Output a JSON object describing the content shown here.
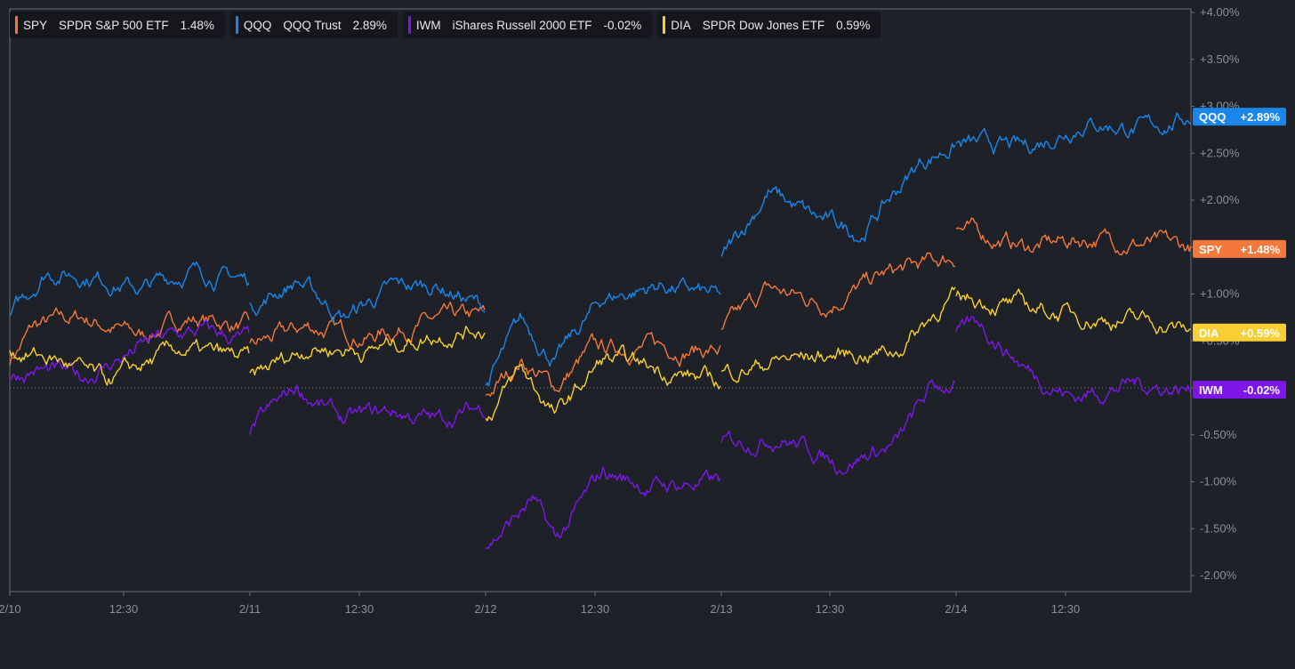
{
  "legend": [
    {
      "ticker": "SPY",
      "name": "SPDR S&P 500 ETF",
      "change": "1.48%",
      "color": "#f4773b"
    },
    {
      "ticker": "QQQ",
      "name": "QQQ Trust",
      "change": "2.89%",
      "color": "#1a86ea"
    },
    {
      "ticker": "IWM",
      "name": "iShares Russell 2000 ETF",
      "change": "-0.02%",
      "color": "#7c17e8"
    },
    {
      "ticker": "DIA",
      "name": "SPDR Dow Jones ETF",
      "change": "0.59%",
      "color": "#f7cf34"
    }
  ],
  "chart_data": {
    "type": "line",
    "y_unit": "percent change",
    "ylim": [
      -2.0,
      4.0
    ],
    "y_ticks": [
      "+4.00%",
      "+3.50%",
      "+3.00%",
      "+2.50%",
      "+2.00%",
      "+1.50%",
      "+1.00%",
      "+0.50%",
      "0.00%",
      "-0.50%",
      "-1.00%",
      "-1.50%",
      "-2.00%"
    ],
    "x_tick_labels": [
      "2/10",
      "12:30",
      "2/11",
      "12:30",
      "2/12",
      "12:30",
      "2/13",
      "12:30",
      "2/14",
      "12:30"
    ],
    "zero_line": "dotted",
    "series": [
      {
        "name": "SPY",
        "color": "#f4773b",
        "end_label": "+1.48%",
        "days": [
          [
            [
              0,
              0.3
            ],
            [
              0.1,
              0.65
            ],
            [
              0.3,
              0.75
            ],
            [
              0.55,
              0.55
            ],
            [
              0.75,
              0.75
            ],
            [
              1.0,
              0.65
            ]
          ],
          [
            [
              0,
              0.45
            ],
            [
              0.25,
              0.65
            ],
            [
              0.5,
              0.55
            ],
            [
              0.75,
              0.7
            ],
            [
              1.0,
              0.75
            ]
          ],
          [
            [
              0,
              -0.1
            ],
            [
              0.15,
              0.3
            ],
            [
              0.3,
              0.0
            ],
            [
              0.45,
              0.4
            ],
            [
              0.7,
              0.45
            ],
            [
              1.0,
              0.4
            ]
          ],
          [
            [
              0,
              0.6
            ],
            [
              0.2,
              1.05
            ],
            [
              0.45,
              0.9
            ],
            [
              0.7,
              1.2
            ],
            [
              1.0,
              1.4
            ]
          ],
          [
            [
              0,
              1.7
            ],
            [
              0.3,
              1.5
            ],
            [
              0.6,
              1.6
            ],
            [
              1.0,
              1.48
            ]
          ]
        ]
      },
      {
        "name": "QQQ",
        "color": "#1a86ea",
        "end_label": "+2.89%",
        "days": [
          [
            [
              0,
              0.75
            ],
            [
              0.15,
              1.25
            ],
            [
              0.35,
              1.2
            ],
            [
              0.55,
              1.05
            ],
            [
              0.75,
              1.25
            ],
            [
              1.0,
              1.15
            ]
          ],
          [
            [
              0,
              0.85
            ],
            [
              0.2,
              1.15
            ],
            [
              0.4,
              0.75
            ],
            [
              0.6,
              1.05
            ],
            [
              0.8,
              1.1
            ],
            [
              1.0,
              0.85
            ]
          ],
          [
            [
              0,
              0.0
            ],
            [
              0.15,
              0.7
            ],
            [
              0.3,
              0.3
            ],
            [
              0.5,
              0.95
            ],
            [
              0.75,
              1.1
            ],
            [
              1.0,
              0.95
            ]
          ],
          [
            [
              0,
              1.35
            ],
            [
              0.2,
              2.1
            ],
            [
              0.4,
              1.8
            ],
            [
              0.6,
              1.65
            ],
            [
              0.85,
              2.4
            ],
            [
              1.0,
              2.6
            ]
          ],
          [
            [
              0,
              2.6
            ],
            [
              0.3,
              2.55
            ],
            [
              0.55,
              2.85
            ],
            [
              0.8,
              2.75
            ],
            [
              1.0,
              2.89
            ]
          ]
        ]
      },
      {
        "name": "IWM",
        "color": "#7c17e8",
        "end_label": "-0.02%",
        "days": [
          [
            [
              0,
              0.1
            ],
            [
              0.1,
              0.2
            ],
            [
              0.3,
              0.1
            ],
            [
              0.6,
              0.5
            ],
            [
              0.8,
              0.6
            ],
            [
              1.0,
              0.5
            ]
          ],
          [
            [
              0,
              -0.45
            ],
            [
              0.2,
              0.0
            ],
            [
              0.4,
              -0.35
            ],
            [
              0.6,
              -0.25
            ],
            [
              0.8,
              -0.35
            ],
            [
              1.0,
              -0.2
            ]
          ],
          [
            [
              0,
              -1.7
            ],
            [
              0.2,
              -1.2
            ],
            [
              0.3,
              -1.65
            ],
            [
              0.5,
              -0.9
            ],
            [
              0.7,
              -1.05
            ],
            [
              1.0,
              -1.0
            ]
          ],
          [
            [
              0,
              -0.6
            ],
            [
              0.25,
              -0.5
            ],
            [
              0.5,
              -0.8
            ],
            [
              0.75,
              -0.6
            ],
            [
              0.9,
              0.0
            ],
            [
              1.0,
              0.05
            ]
          ],
          [
            [
              0,
              0.55
            ],
            [
              0.1,
              0.7
            ],
            [
              0.3,
              0.2
            ],
            [
              0.5,
              -0.1
            ],
            [
              0.75,
              0.05
            ],
            [
              1.0,
              -0.02
            ]
          ]
        ]
      },
      {
        "name": "DIA",
        "color": "#f7cf34",
        "end_label": "+0.59%",
        "days": [
          [
            [
              0,
              0.4
            ],
            [
              0.2,
              0.3
            ],
            [
              0.4,
              0.05
            ],
            [
              0.7,
              0.4
            ],
            [
              1.0,
              0.3
            ]
          ],
          [
            [
              0,
              0.1
            ],
            [
              0.25,
              0.45
            ],
            [
              0.5,
              0.4
            ],
            [
              0.75,
              0.55
            ],
            [
              1.0,
              0.65
            ]
          ],
          [
            [
              0,
              -0.35
            ],
            [
              0.15,
              0.2
            ],
            [
              0.3,
              -0.3
            ],
            [
              0.5,
              0.3
            ],
            [
              0.75,
              0.2
            ],
            [
              1.0,
              0.05
            ]
          ],
          [
            [
              0,
              0.15
            ],
            [
              0.25,
              0.3
            ],
            [
              0.5,
              0.35
            ],
            [
              0.75,
              0.4
            ],
            [
              0.95,
              0.9
            ],
            [
              1.0,
              0.95
            ]
          ],
          [
            [
              0,
              1.0
            ],
            [
              0.3,
              0.85
            ],
            [
              0.6,
              0.75
            ],
            [
              0.85,
              0.7
            ],
            [
              1.0,
              0.59
            ]
          ]
        ]
      }
    ]
  }
}
